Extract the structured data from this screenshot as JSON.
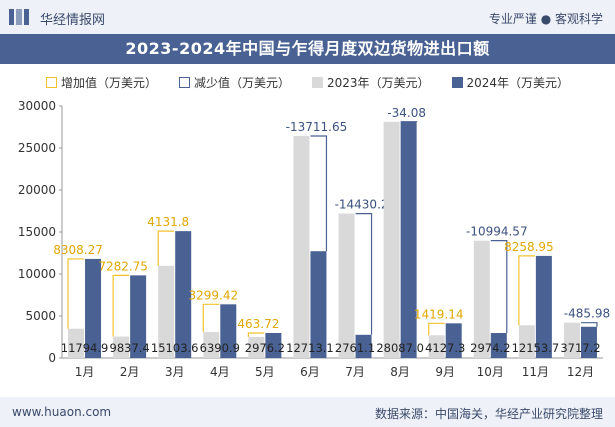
{
  "header": {
    "logo_text": "华经情报网",
    "slogan": "专业严谨 ● 客观科学"
  },
  "footer": {
    "url": "www.huaon.com",
    "source": "数据来源：中国海关，华经产业研究院整理"
  },
  "colors": {
    "bar_2023": "#d9d9d9",
    "bar_2024": "#4a6293",
    "increase": "#f2c12e",
    "decrease": "#4a6293"
  },
  "chart_data": {
    "type": "bar",
    "title": "2023-2024年中国与乍得月度双边货物进出口额",
    "legend": [
      "增加值（万美元）",
      "减少值（万美元）",
      "2023年（万美元）",
      "2024年（万美元）"
    ],
    "categories": [
      "1月",
      "2月",
      "3月",
      "4月",
      "5月",
      "6月",
      "7月",
      "8月",
      "9月",
      "10月",
      "11月",
      "12月"
    ],
    "series": [
      {
        "name": "2023年（万美元）",
        "values": [
          3486.63,
          2554.65,
          10971.8,
          3091.48,
          2512.48,
          26424.75,
          17191.3,
          28121.08,
          2708.16,
          13968.77,
          3894.15,
          4203.18
        ]
      },
      {
        "name": "2024年（万美元）",
        "values": [
          11794.9,
          9837.4,
          15103.6,
          6390.9,
          2976.2,
          12713.1,
          2761.1,
          28087.0,
          4127.3,
          2974.2,
          12153.7,
          3717.2
        ]
      }
    ],
    "changes": [
      8308.27,
      7282.75,
      4131.8,
      3299.42,
      463.72,
      -13711.65,
      -14430.2,
      -34.08,
      1419.14,
      -10994.57,
      8258.95,
      -485.98
    ],
    "change_labels": [
      "8308.27",
      "7282.75",
      "4131.8",
      "3299.42",
      "463.72",
      "-13711.65",
      "-14430.2",
      "-34.08",
      "1419.14",
      "-10994.57",
      "8258.95",
      "-485.98"
    ],
    "value_labels": [
      "11794.9",
      "9837.4",
      "15103.6",
      "6390.9",
      "2976.2",
      "12713.1",
      "2761.1",
      "28087.0",
      "4127.3",
      "2974.2",
      "12153.7",
      "3717.2"
    ],
    "yticks": [
      "0",
      "5000",
      "10000",
      "15000",
      "20000",
      "25000",
      "30000"
    ],
    "ylim": [
      0,
      30000
    ],
    "xlabel": "",
    "ylabel": ""
  }
}
